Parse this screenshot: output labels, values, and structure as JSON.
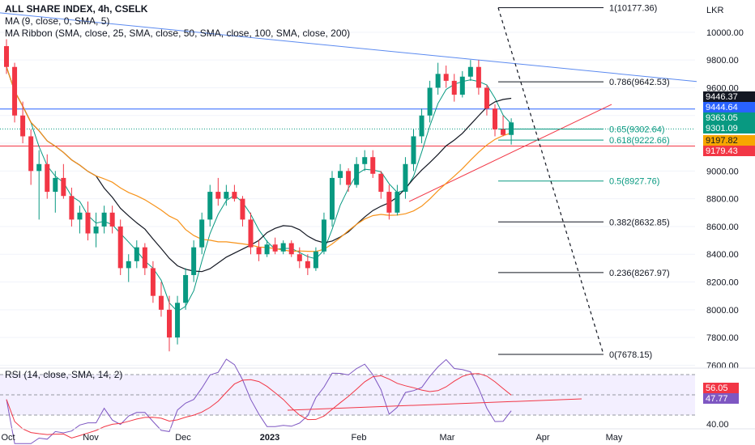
{
  "legend": {
    "main": "ALL SHARE INDEX, 4h, CSELK",
    "ma": "MA (9, close, 0, SMA, 5)",
    "ribbon": "MA Ribbon (SMA, close, 25, SMA, close, 50, SMA, close, 100, SMA, close, 200)",
    "rsi": "RSI (14, close, SMA, 14, 2)"
  },
  "chart_data": {
    "type": "candlestick",
    "currency": "LKR",
    "ylim": [
      7550,
      10250
    ],
    "y_ticks": [
      "10000.00",
      "9800.00",
      "9600.00",
      "9400.00",
      "9200.00",
      "9000.00",
      "8800.00",
      "8600.00",
      "8400.00",
      "8200.00",
      "8000.00",
      "7800.00",
      "7600.00"
    ],
    "x_ticks": [
      "Oct",
      "Nov",
      "Dec",
      "2023",
      "Feb",
      "Mar",
      "Apr",
      "May"
    ],
    "ohlc": [
      [
        9900,
        9950,
        9700,
        9750
      ],
      [
        9750,
        9780,
        9350,
        9400
      ],
      [
        9400,
        9500,
        9200,
        9250
      ],
      [
        9250,
        9300,
        8900,
        9000
      ],
      [
        9000,
        9150,
        8650,
        9050
      ],
      [
        9050,
        9120,
        8800,
        8850
      ],
      [
        8850,
        9000,
        8700,
        8950
      ],
      [
        8950,
        9050,
        8800,
        8820
      ],
      [
        8820,
        8880,
        8600,
        8650
      ],
      [
        8650,
        8750,
        8550,
        8700
      ],
      [
        8700,
        8780,
        8500,
        8550
      ],
      [
        8550,
        8700,
        8450,
        8600
      ],
      [
        8600,
        8750,
        8550,
        8700
      ],
      [
        8700,
        8750,
        8550,
        8600
      ],
      [
        8600,
        8650,
        8250,
        8300
      ],
      [
        8300,
        8400,
        8200,
        8350
      ],
      [
        8350,
        8500,
        8300,
        8450
      ],
      [
        8450,
        8480,
        8250,
        8300
      ],
      [
        8300,
        8350,
        8050,
        8100
      ],
      [
        8100,
        8200,
        7950,
        8000
      ],
      [
        8000,
        8100,
        7700,
        7800
      ],
      [
        7800,
        8100,
        7750,
        8050
      ],
      [
        8050,
        8300,
        8000,
        8250
      ],
      [
        8250,
        8500,
        8200,
        8450
      ],
      [
        8450,
        8700,
        8400,
        8650
      ],
      [
        8650,
        8900,
        8600,
        8850
      ],
      [
        8850,
        8950,
        8750,
        8800
      ],
      [
        8800,
        8900,
        8750,
        8850
      ],
      [
        8850,
        8900,
        8780,
        8800
      ],
      [
        8800,
        8820,
        8600,
        8650
      ],
      [
        8650,
        8700,
        8400,
        8450
      ],
      [
        8450,
        8500,
        8350,
        8400
      ],
      [
        8400,
        8500,
        8380,
        8470
      ],
      [
        8470,
        8520,
        8400,
        8420
      ],
      [
        8420,
        8500,
        8400,
        8480
      ],
      [
        8480,
        8500,
        8380,
        8400
      ],
      [
        8400,
        8450,
        8300,
        8350
      ],
      [
        8350,
        8400,
        8250,
        8300
      ],
      [
        8300,
        8450,
        8280,
        8420
      ],
      [
        8420,
        8700,
        8400,
        8650
      ],
      [
        8650,
        9000,
        8600,
        8950
      ],
      [
        8950,
        9050,
        8900,
        9000
      ],
      [
        9000,
        9020,
        8850,
        8900
      ],
      [
        8900,
        9100,
        8880,
        9050
      ],
      [
        9050,
        9150,
        9000,
        9100
      ],
      [
        9100,
        9150,
        8950,
        8980
      ],
      [
        8980,
        9000,
        8800,
        8850
      ],
      [
        8850,
        8900,
        8650,
        8700
      ],
      [
        8700,
        8900,
        8680,
        8850
      ],
      [
        8850,
        9100,
        8800,
        9050
      ],
      [
        9050,
        9300,
        9000,
        9250
      ],
      [
        9250,
        9450,
        9200,
        9400
      ],
      [
        9400,
        9650,
        9350,
        9600
      ],
      [
        9600,
        9780,
        9550,
        9700
      ],
      [
        9700,
        9760,
        9600,
        9650
      ],
      [
        9650,
        9700,
        9500,
        9550
      ],
      [
        9550,
        9720,
        9530,
        9680
      ],
      [
        9680,
        9800,
        9650,
        9750
      ],
      [
        9750,
        9800,
        9550,
        9600
      ],
      [
        9600,
        9620,
        9400,
        9450
      ],
      [
        9450,
        9480,
        9250,
        9300
      ],
      [
        9300,
        9400,
        9250,
        9260
      ],
      [
        9260,
        9380,
        9190,
        9350
      ]
    ],
    "price_labels": [
      {
        "value": "9446.37",
        "color": "#131722"
      },
      {
        "value": "9444.64",
        "color": "#2962ff"
      },
      {
        "value": "9363.05",
        "color": "#089981"
      },
      {
        "value": "9301.09",
        "color": "#089981"
      },
      {
        "value": "9197.82",
        "color": "#f7a600"
      },
      {
        "value": "9179.43",
        "color": "#f23645"
      }
    ],
    "fib_levels": [
      {
        "ratio": "1",
        "value": 10177.36,
        "label": "1(10177.36)"
      },
      {
        "ratio": "0.786",
        "value": 9642.53,
        "label": "0.786(9642.53)"
      },
      {
        "ratio": "0.65",
        "value": 9302.64,
        "label": "0.65(9302.64)"
      },
      {
        "ratio": "0.618",
        "value": 9222.66,
        "label": "0.618(9222.66)"
      },
      {
        "ratio": "0.5",
        "value": 8927.76,
        "label": "0.5(8927.76)"
      },
      {
        "ratio": "0.382",
        "value": 8632.85,
        "label": "0.382(8632.85)"
      },
      {
        "ratio": "0.236",
        "value": 8267.97,
        "label": "0.236(8267.97)"
      },
      {
        "ratio": "0",
        "value": 7678.15,
        "label": "0(7678.15)"
      }
    ],
    "rsi": {
      "ylim": [
        25,
        80
      ],
      "y_ticks": [
        "40.00"
      ],
      "labels": [
        {
          "value": "56.05",
          "color": "#f23645"
        },
        {
          "value": "47.77",
          "color": "#7e57c2"
        }
      ]
    }
  }
}
